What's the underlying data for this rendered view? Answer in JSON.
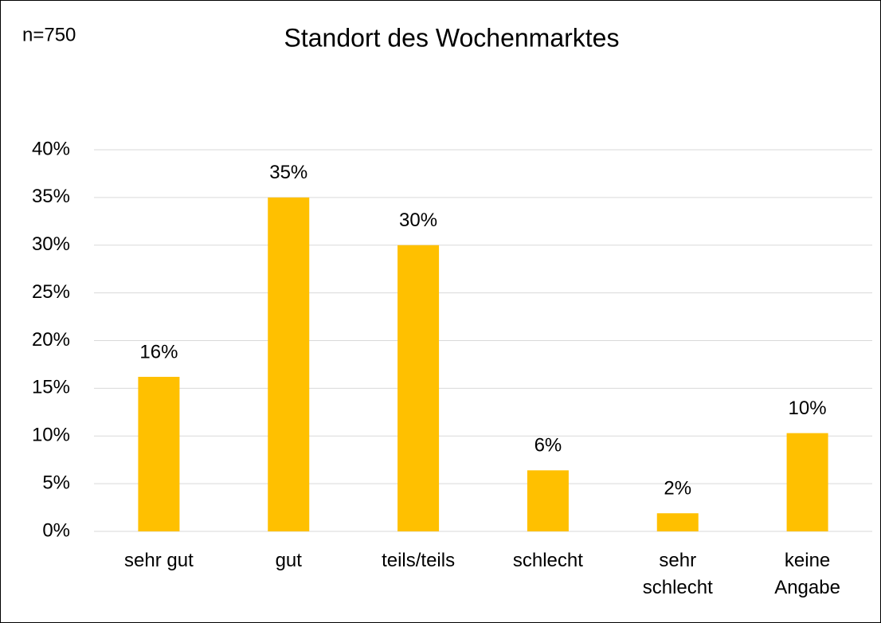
{
  "chart_data": {
    "type": "bar",
    "title": "Standort des Wochenmarktes",
    "annotation": "n=750",
    "categories": [
      "sehr gut",
      "gut",
      "teils/teils",
      "schlecht",
      "sehr schlecht",
      "keine Angabe"
    ],
    "values": [
      16.2,
      35,
      30,
      6.4,
      1.9,
      10.3
    ],
    "value_labels": [
      "16%",
      "35%",
      "30%",
      "6%",
      "2%",
      "10%"
    ],
    "color": "#ffc000",
    "ylim": [
      0,
      40
    ],
    "yticks": [
      {
        "value": 0,
        "label": "0%"
      },
      {
        "value": 5,
        "label": "5%"
      },
      {
        "value": 10,
        "label": "10%"
      },
      {
        "value": 15,
        "label": "15%"
      },
      {
        "value": 20,
        "label": "20%"
      },
      {
        "value": 25,
        "label": "25%"
      },
      {
        "value": 30,
        "label": "30%"
      },
      {
        "value": 35,
        "label": "35%"
      },
      {
        "value": 40,
        "label": "40%"
      }
    ],
    "grid": true
  }
}
